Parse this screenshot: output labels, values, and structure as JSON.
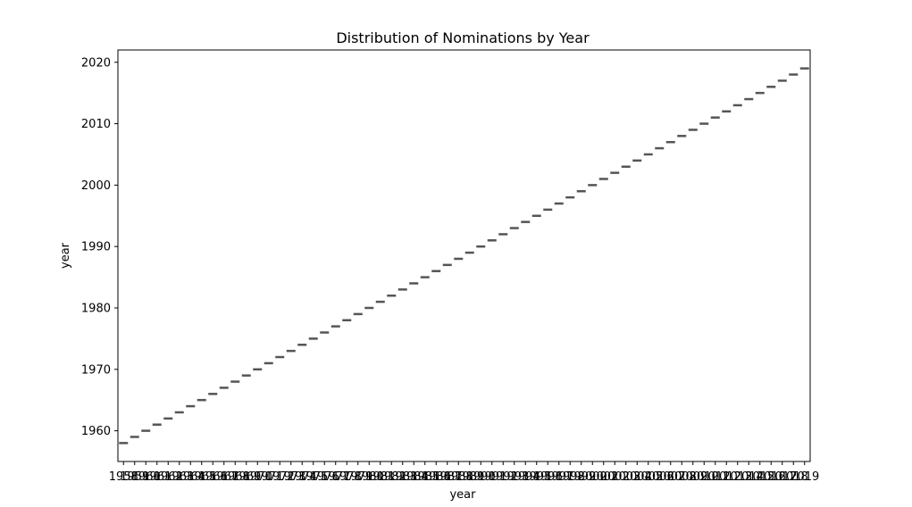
{
  "chart_data": {
    "type": "box",
    "title": "Distribution of Nominations by Year",
    "xlabel": "year",
    "ylabel": "year",
    "categories": [
      "1958",
      "1959",
      "1960",
      "1961",
      "1962",
      "1963",
      "1964",
      "1965",
      "1966",
      "1967",
      "1968",
      "1969",
      "1970",
      "1971",
      "1972",
      "1973",
      "1974",
      "1975",
      "1976",
      "1977",
      "1978",
      "1979",
      "1980",
      "1981",
      "1982",
      "1983",
      "1984",
      "1985",
      "1986",
      "1987",
      "1988",
      "1989",
      "1990",
      "1991",
      "1992",
      "1993",
      "1994",
      "1995",
      "1996",
      "1997",
      "1998",
      "1999",
      "2000",
      "2001",
      "2002",
      "2003",
      "2004",
      "2005",
      "2006",
      "2007",
      "2008",
      "2009",
      "2010",
      "2011",
      "2012",
      "2013",
      "2014",
      "2015",
      "2016",
      "2017",
      "2018",
      "2019"
    ],
    "values": [
      1958,
      1959,
      1960,
      1961,
      1962,
      1963,
      1964,
      1965,
      1966,
      1967,
      1968,
      1969,
      1970,
      1971,
      1972,
      1973,
      1974,
      1975,
      1976,
      1977,
      1978,
      1979,
      1980,
      1981,
      1982,
      1983,
      1984,
      1985,
      1986,
      1987,
      1988,
      1989,
      1990,
      1991,
      1992,
      1993,
      1994,
      1995,
      1996,
      1997,
      1998,
      1999,
      2000,
      2001,
      2002,
      2003,
      2004,
      2005,
      2006,
      2007,
      2008,
      2009,
      2010,
      2011,
      2012,
      2013,
      2014,
      2015,
      2016,
      2017,
      2018,
      2019
    ],
    "yticks": [
      1960,
      1970,
      1980,
      1990,
      2000,
      2010,
      2020
    ],
    "ylim": [
      1955,
      2022
    ],
    "grid": false,
    "legend": "none",
    "colors": {
      "mark": "#555555",
      "frame": "#000000"
    }
  }
}
